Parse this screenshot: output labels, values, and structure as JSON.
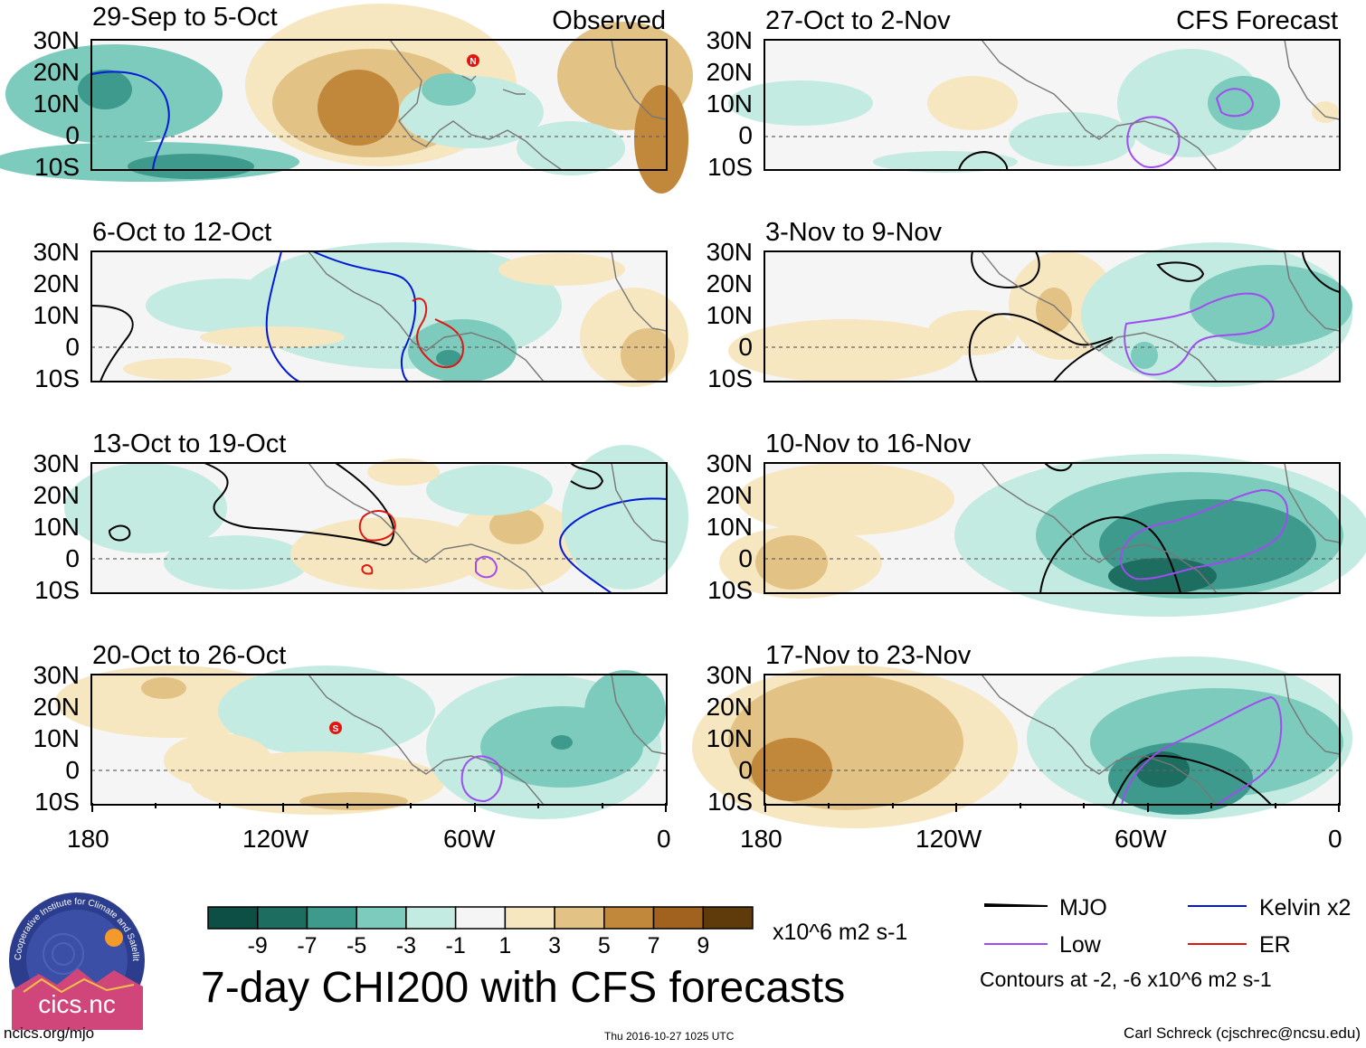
{
  "colors": {
    "neg9": "#0e4f45",
    "neg7": "#1d6d61",
    "neg5": "#3e9a8d",
    "neg3": "#7ccbbd",
    "neg1": "#c3ebe1",
    "zero": "#f5f5f5",
    "pos1": "#f6e7c1",
    "pos3": "#e2c385",
    "pos5": "#c1873a",
    "pos7": "#a2621f",
    "pos9": "#5f3a0a",
    "mjo": "#000000",
    "low": "#a04cf0",
    "kelvin": "#0019d8",
    "er": "#e0160f",
    "land": "#777777",
    "logo_bg": "#2b3d8c",
    "logo_ring": "#4b62b8"
  },
  "headers": {
    "observed": "Observed",
    "forecast": "CFS Forecast"
  },
  "chart_data": {
    "type": "heatmap",
    "title": "7-day CHI200 with CFS forecasts",
    "units": "x10^6 m2 s-1",
    "lat_labels": [
      "30N",
      "20N",
      "10N",
      "0",
      "10S"
    ],
    "lon_labels": [
      "180",
      "120W",
      "60W",
      "0"
    ],
    "lat_range": [
      -10,
      30
    ],
    "lon_range": [
      -180,
      0
    ],
    "colorbar": {
      "ticks": [
        "-9",
        "-7",
        "-5",
        "-3",
        "-1",
        "1",
        "3",
        "5",
        "7",
        "9"
      ],
      "bins": [
        "neg9",
        "neg7",
        "neg5",
        "neg3",
        "neg1",
        "zero",
        "pos1",
        "pos3",
        "pos5",
        "pos7",
        "pos9"
      ]
    },
    "panels": [
      {
        "period": "29-Sep to 5-Oct",
        "kind": "observed",
        "storms": [
          "N"
        ]
      },
      {
        "period": "6-Oct to 12-Oct",
        "kind": "observed",
        "storms": []
      },
      {
        "period": "13-Oct to 19-Oct",
        "kind": "observed",
        "storms": []
      },
      {
        "period": "20-Oct to 26-Oct",
        "kind": "observed",
        "storms": [
          "S"
        ]
      },
      {
        "period": "27-Oct to 2-Nov",
        "kind": "forecast",
        "storms": []
      },
      {
        "period": "3-Nov to 9-Nov",
        "kind": "forecast",
        "storms": []
      },
      {
        "period": "10-Nov to 16-Nov",
        "kind": "forecast",
        "storms": []
      },
      {
        "period": "17-Nov to 23-Nov",
        "kind": "forecast",
        "storms": []
      }
    ]
  },
  "legend": {
    "mjo": "MJO",
    "kelvin": "Kelvin x2",
    "low": "Low",
    "er": "ER",
    "contours_note": "Contours at -2, -6 x10^6 m2 s-1"
  },
  "footer": {
    "site": "ncics.org/mjo",
    "timestamp": "Thu 2016-10-27 1025 UTC",
    "author": "Carl Schreck (cjschrec@ncsu.edu)"
  },
  "logo": {
    "name": "cics.nc",
    "ring_text": "Cooperative Institute for Climate and Satellites"
  }
}
